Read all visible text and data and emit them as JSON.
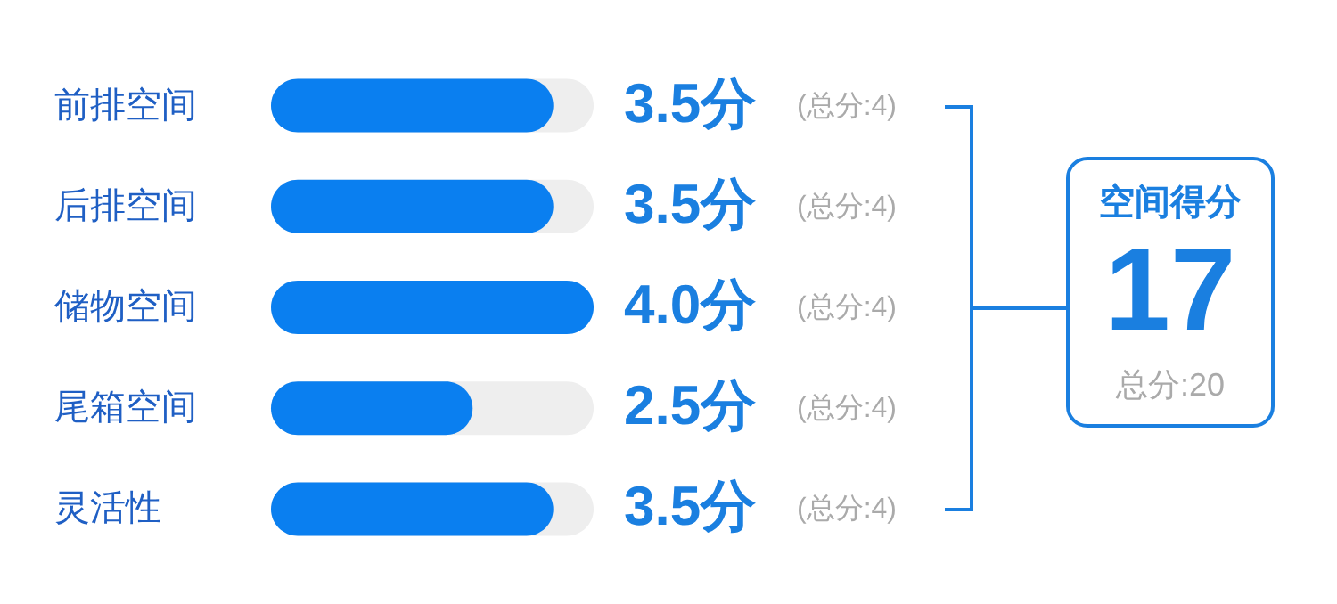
{
  "chart_data": {
    "type": "bar",
    "orientation": "horizontal",
    "categories": [
      "前排空间",
      "后排空间",
      "储物空间",
      "尾箱空间",
      "灵活性"
    ],
    "values": [
      3.5,
      3.5,
      4.0,
      2.5,
      3.5
    ],
    "value_labels": [
      "3.5分",
      "3.5分",
      "4.0分",
      "2.5分",
      "3.5分"
    ],
    "color": "#0a7ff0",
    "xlim": [
      0,
      4
    ],
    "tick_labels": "y",
    "annotations": [
      "(总分:4)",
      "(总分:4)",
      "(总分:4)",
      "(总分:4)",
      "(总分:4)",
      "空间得分",
      "17",
      "总分:20"
    ]
  }
}
